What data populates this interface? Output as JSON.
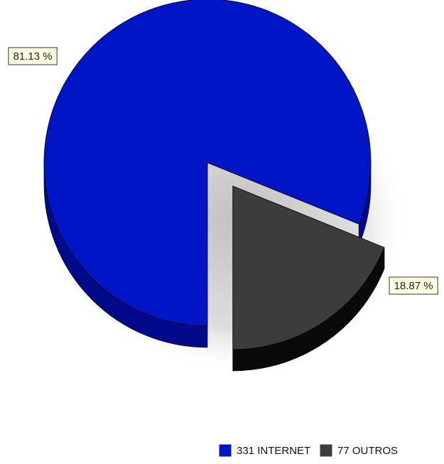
{
  "chart_data": {
    "type": "pie",
    "title": "",
    "slices": [
      {
        "label": "331 INTERNET",
        "value": 331,
        "percent_label": "81.13 %",
        "color": "#0015c6",
        "side_color": "#000a8a",
        "exploded": false
      },
      {
        "label": "77 OUTROS",
        "value": 77,
        "percent_label": "18.87 %",
        "color": "#3c3c3c",
        "side_color": "#0a0a0a",
        "exploded": true
      }
    ],
    "legend_position": "bottom-right",
    "label_box_color": "#ffffe1"
  }
}
